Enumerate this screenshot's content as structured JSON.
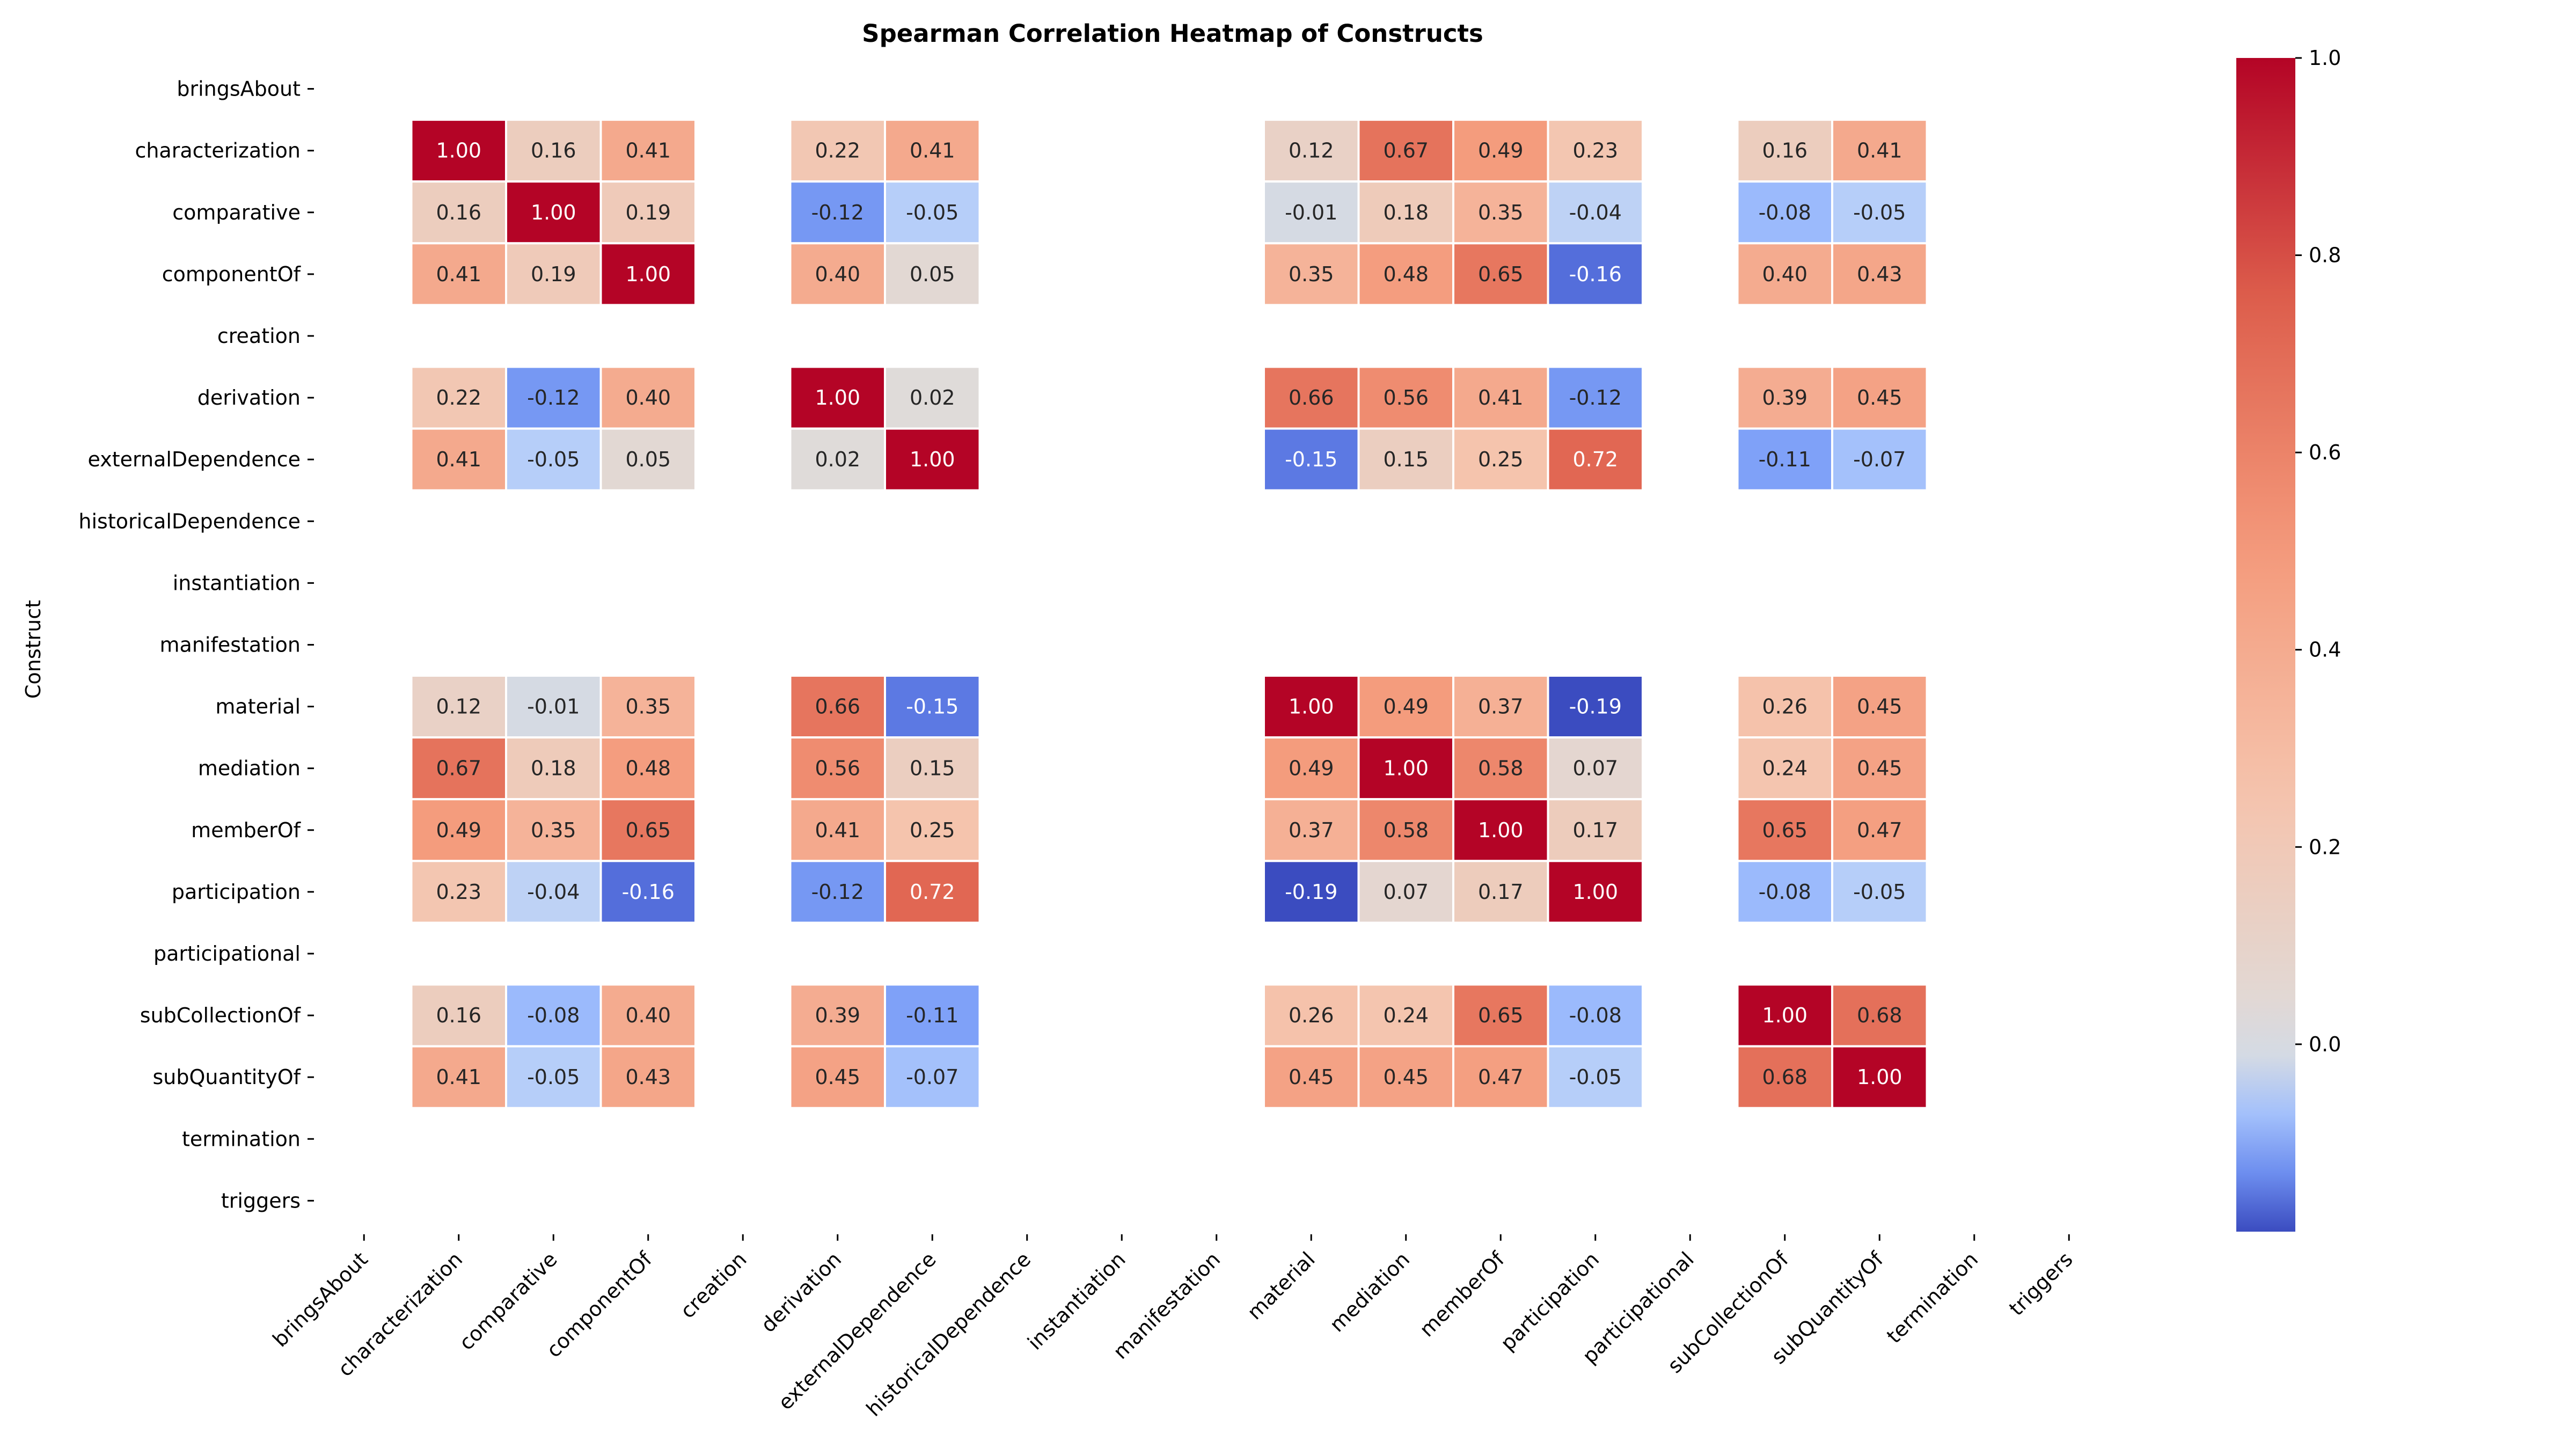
{
  "chart_data": {
    "type": "heatmap",
    "title": "Spearman Correlation Heatmap of Constructs",
    "ylabel": "Construct",
    "xlabel": "",
    "labels": [
      "bringsAbout",
      "characterization",
      "comparative",
      "componentOf",
      "creation",
      "derivation",
      "externalDependence",
      "historicalDependence",
      "instantiation",
      "manifestation",
      "material",
      "mediation",
      "memberOf",
      "participation",
      "participational",
      "subCollectionOf",
      "subQuantityOf",
      "termination",
      "triggers"
    ],
    "matrix": [
      [
        null,
        null,
        null,
        null,
        null,
        null,
        null,
        null,
        null,
        null,
        null,
        null,
        null,
        null,
        null,
        null,
        null,
        null,
        null
      ],
      [
        null,
        1.0,
        0.16,
        0.41,
        null,
        0.22,
        0.41,
        null,
        null,
        null,
        0.12,
        0.67,
        0.49,
        0.23,
        null,
        0.16,
        0.41,
        null,
        null
      ],
      [
        null,
        0.16,
        1.0,
        0.19,
        null,
        -0.12,
        -0.05,
        null,
        null,
        null,
        -0.01,
        0.18,
        0.35,
        -0.04,
        null,
        -0.08,
        -0.05,
        null,
        null
      ],
      [
        null,
        0.41,
        0.19,
        1.0,
        null,
        0.4,
        0.05,
        null,
        null,
        null,
        0.35,
        0.48,
        0.65,
        -0.16,
        null,
        0.4,
        0.43,
        null,
        null
      ],
      [
        null,
        null,
        null,
        null,
        null,
        null,
        null,
        null,
        null,
        null,
        null,
        null,
        null,
        null,
        null,
        null,
        null,
        null,
        null
      ],
      [
        null,
        0.22,
        -0.12,
        0.4,
        null,
        1.0,
        0.02,
        null,
        null,
        null,
        0.66,
        0.56,
        0.41,
        -0.12,
        null,
        0.39,
        0.45,
        null,
        null
      ],
      [
        null,
        0.41,
        -0.05,
        0.05,
        null,
        0.02,
        1.0,
        null,
        null,
        null,
        -0.15,
        0.15,
        0.25,
        0.72,
        null,
        -0.11,
        -0.07,
        null,
        null
      ],
      [
        null,
        null,
        null,
        null,
        null,
        null,
        null,
        null,
        null,
        null,
        null,
        null,
        null,
        null,
        null,
        null,
        null,
        null,
        null
      ],
      [
        null,
        null,
        null,
        null,
        null,
        null,
        null,
        null,
        null,
        null,
        null,
        null,
        null,
        null,
        null,
        null,
        null,
        null,
        null
      ],
      [
        null,
        null,
        null,
        null,
        null,
        null,
        null,
        null,
        null,
        null,
        null,
        null,
        null,
        null,
        null,
        null,
        null,
        null,
        null
      ],
      [
        null,
        0.12,
        -0.01,
        0.35,
        null,
        0.66,
        -0.15,
        null,
        null,
        null,
        1.0,
        0.49,
        0.37,
        -0.19,
        null,
        0.26,
        0.45,
        null,
        null
      ],
      [
        null,
        0.67,
        0.18,
        0.48,
        null,
        0.56,
        0.15,
        null,
        null,
        null,
        0.49,
        1.0,
        0.58,
        0.07,
        null,
        0.24,
        0.45,
        null,
        null
      ],
      [
        null,
        0.49,
        0.35,
        0.65,
        null,
        0.41,
        0.25,
        null,
        null,
        null,
        0.37,
        0.58,
        1.0,
        0.17,
        null,
        0.65,
        0.47,
        null,
        null
      ],
      [
        null,
        0.23,
        -0.04,
        -0.16,
        null,
        -0.12,
        0.72,
        null,
        null,
        null,
        -0.19,
        0.07,
        0.17,
        1.0,
        null,
        -0.08,
        -0.05,
        null,
        null
      ],
      [
        null,
        null,
        null,
        null,
        null,
        null,
        null,
        null,
        null,
        null,
        null,
        null,
        null,
        null,
        null,
        null,
        null,
        null,
        null
      ],
      [
        null,
        0.16,
        -0.08,
        0.4,
        null,
        0.39,
        -0.11,
        null,
        null,
        null,
        0.26,
        0.24,
        0.65,
        -0.08,
        null,
        1.0,
        0.68,
        null,
        null
      ],
      [
        null,
        0.41,
        -0.05,
        0.43,
        null,
        0.45,
        -0.07,
        null,
        null,
        null,
        0.45,
        0.45,
        0.47,
        -0.05,
        null,
        0.68,
        1.0,
        null,
        null
      ],
      [
        null,
        null,
        null,
        null,
        null,
        null,
        null,
        null,
        null,
        null,
        null,
        null,
        null,
        null,
        null,
        null,
        null,
        null,
        null
      ],
      [
        null,
        null,
        null,
        null,
        null,
        null,
        null,
        null,
        null,
        null,
        null,
        null,
        null,
        null,
        null,
        null,
        null,
        null,
        null
      ]
    ],
    "colorbar": {
      "min": -0.19,
      "max": 1.0,
      "ticks": [
        "0.0",
        "0.2",
        "0.4",
        "0.6",
        "0.8",
        "1.0"
      ],
      "colormap": "coolwarm",
      "center": 0
    },
    "grid": false,
    "legend": "right"
  },
  "colors": {
    "cell_border": "#ffffff",
    "text_dark": "#262626",
    "text_light": "#ffffff"
  }
}
